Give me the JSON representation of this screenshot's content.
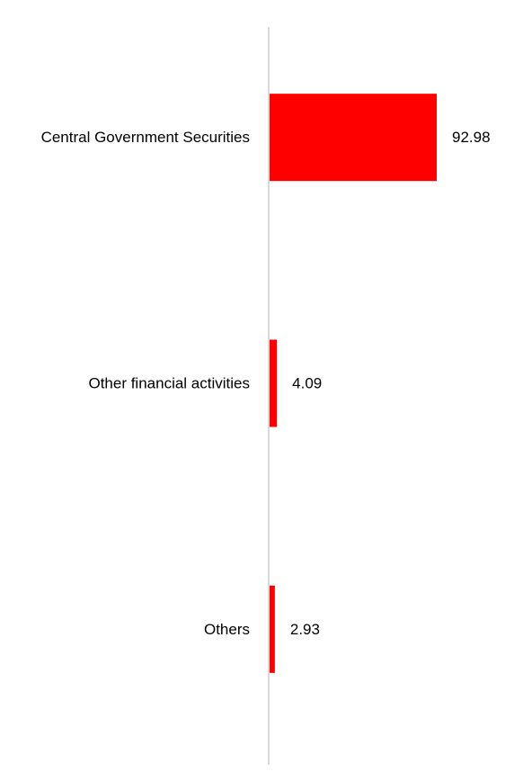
{
  "chart_data": {
    "type": "bar",
    "orientation": "horizontal",
    "categories": [
      "Central Government Securities",
      "Other financial activities",
      "Others"
    ],
    "values": [
      92.98,
      4.09,
      2.93
    ],
    "value_labels": [
      "92.98",
      "4.09",
      "2.93"
    ],
    "title": "",
    "xlabel": "",
    "ylabel": "",
    "xlim": [
      0,
      100
    ],
    "grid": false,
    "legend": "none",
    "colors": {
      "bar": "#ff0000",
      "axis": "#d9d9d9",
      "text": "#000000"
    }
  }
}
